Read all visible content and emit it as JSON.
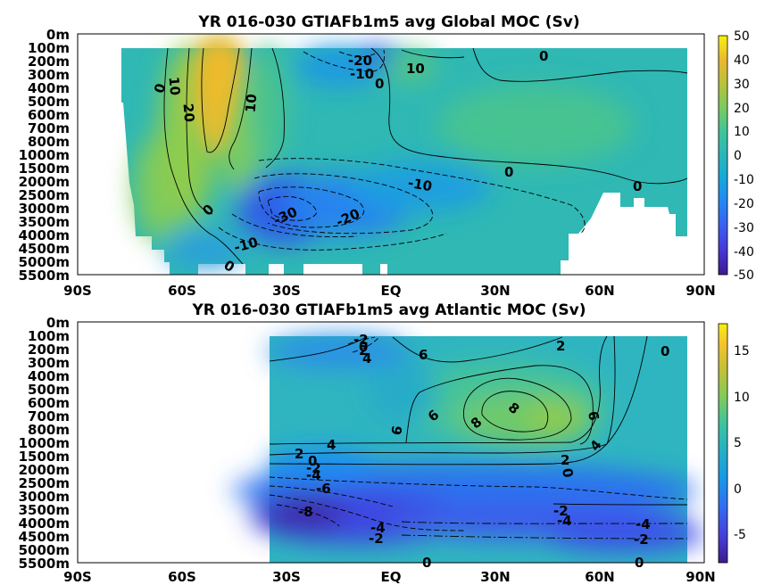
{
  "chart_data": [
    {
      "type": "heatmap",
      "title": "YR 016-030 GTIAFb1m5 avg  Global MOC (Sv)",
      "x_ticks": [
        "90S",
        "60S",
        "30S",
        "EQ",
        "30N",
        "60N",
        "90N"
      ],
      "y_ticks": [
        "0m",
        "100m",
        "200m",
        "300m",
        "400m",
        "500m",
        "600m",
        "700m",
        "800m",
        "1000m",
        "1500m",
        "2000m",
        "2500m",
        "3000m",
        "3500m",
        "4000m",
        "4500m",
        "5000m",
        "5500m"
      ],
      "colorbar_ticks": [
        "50",
        "40",
        "30",
        "20",
        "10",
        "0",
        "-10",
        "-20",
        "-30",
        "-40",
        "-50"
      ],
      "clim": [
        -50,
        50
      ],
      "contour_labels": [
        "-20",
        "-10",
        "10",
        "0",
        "0",
        "10",
        "20",
        "10",
        "0",
        "0",
        "-10",
        "0",
        "-30",
        "-20",
        "0",
        "-10",
        "0"
      ],
      "features": [
        {
          "lat": -50,
          "depth_m": 300,
          "value": 35
        },
        {
          "lat": -32,
          "depth_m": 3000,
          "value": -32
        },
        {
          "lat": 0,
          "depth_m": 150,
          "value": -25
        },
        {
          "lat": 40,
          "depth_m": 1000,
          "value": 12
        }
      ]
    },
    {
      "type": "heatmap",
      "title": "YR 016-030 GTIAFb1m5 avg  Atlantic MOC (Sv)",
      "x_ticks": [
        "90S",
        "60S",
        "30S",
        "EQ",
        "30N",
        "60N",
        "90N"
      ],
      "y_ticks": [
        "0m",
        "100m",
        "200m",
        "300m",
        "400m",
        "500m",
        "600m",
        "700m",
        "800m",
        "1000m",
        "1500m",
        "2000m",
        "2500m",
        "3000m",
        "3500m",
        "4000m",
        "4500m",
        "5000m",
        "5500m"
      ],
      "colorbar_ticks": [
        "15",
        "10",
        "5",
        "0",
        "-5"
      ],
      "clim": [
        -9,
        18
      ],
      "contour_labels": [
        "-2",
        "0",
        "2",
        "4",
        "6",
        "2",
        "0",
        "6",
        "8",
        "8",
        "6",
        "6",
        "4",
        "4",
        "2",
        "0",
        "2",
        "-2",
        "-4",
        "-6",
        "0",
        "-8",
        "-4",
        "-2",
        "-2",
        "-4",
        "-4",
        "-2",
        "0",
        "0"
      ],
      "features": [
        {
          "lat": 40,
          "depth_m": 800,
          "value": 9
        },
        {
          "lat": -30,
          "depth_m": 4000,
          "value": -9
        },
        {
          "lat": 0,
          "depth_m": 4500,
          "value": -5
        }
      ]
    }
  ]
}
